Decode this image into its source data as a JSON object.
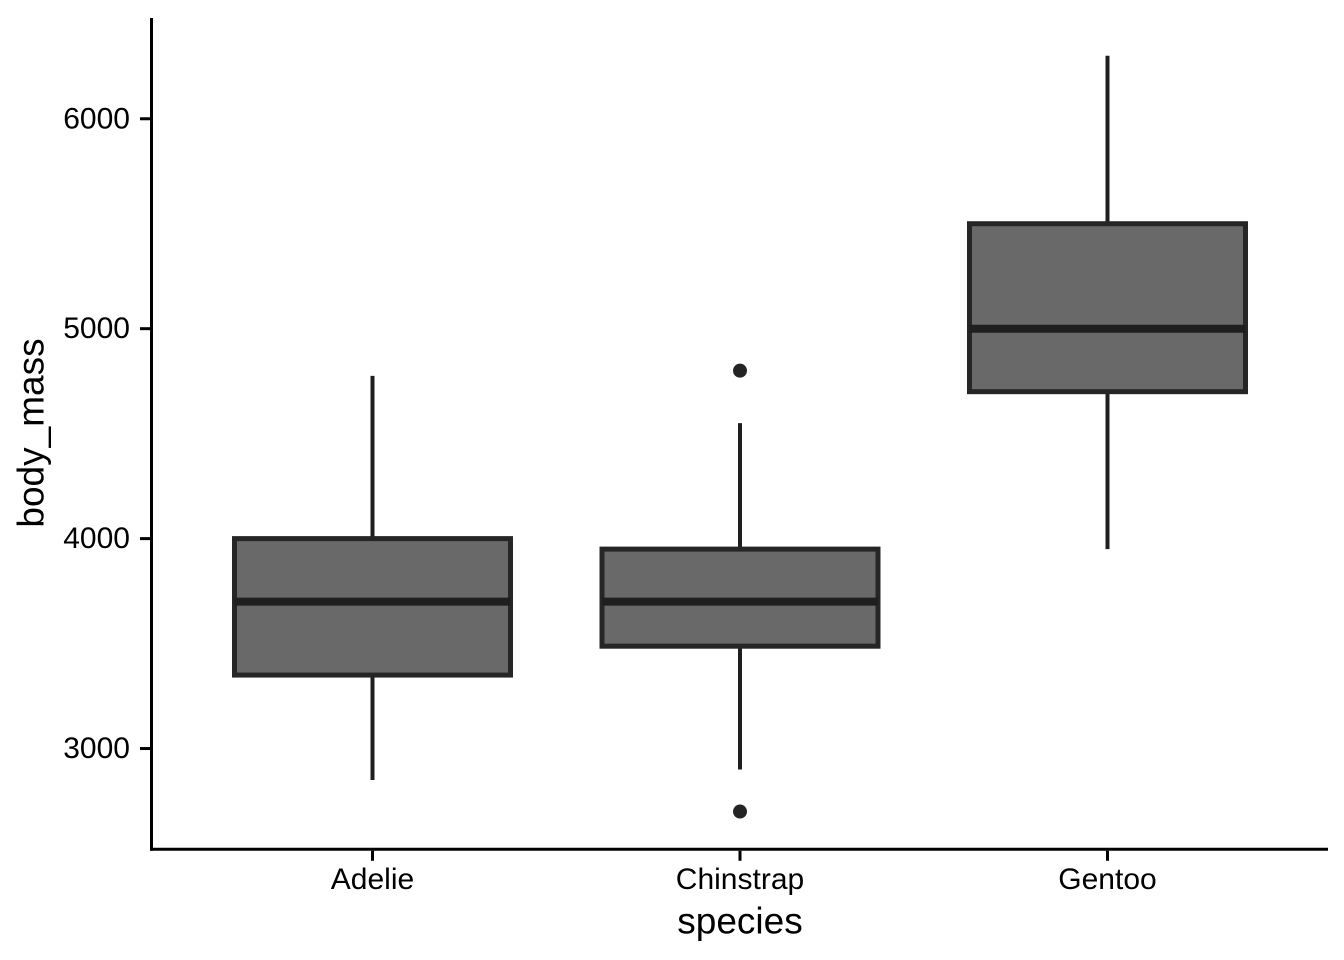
{
  "figure": {
    "background": "#ffffff"
  },
  "chart_data": {
    "type": "boxplot",
    "title": "",
    "xlabel": "species",
    "ylabel": "body_mass",
    "categories": [
      "Adelie",
      "Chinstrap",
      "Gentoo"
    ],
    "y_ticks": [
      3000,
      4000,
      5000,
      6000
    ],
    "ylim": [
      2520,
      6480
    ],
    "grid": "off",
    "legend": "none",
    "series": [
      {
        "name": "Adelie",
        "whisker_low": 2850,
        "q1": 3350,
        "median": 3700,
        "q3": 4000,
        "whisker_high": 4775,
        "outliers": []
      },
      {
        "name": "Chinstrap",
        "whisker_low": 2900,
        "q1": 3487.5,
        "median": 3700,
        "q3": 3950,
        "whisker_high": 4550,
        "outliers": [
          2700,
          4800
        ]
      },
      {
        "name": "Gentoo",
        "whisker_low": 3950,
        "q1": 4700,
        "median": 5000,
        "q3": 5500,
        "whisker_high": 6300,
        "outliers": []
      }
    ],
    "colors": {
      "box_fill": "#696969",
      "box_stroke": "#262626",
      "median_stroke": "#1f1f1f",
      "whisker_stroke": "#1f1f1f",
      "outlier_fill": "#242424",
      "axis_line": "#000000",
      "text": "#000000"
    }
  }
}
